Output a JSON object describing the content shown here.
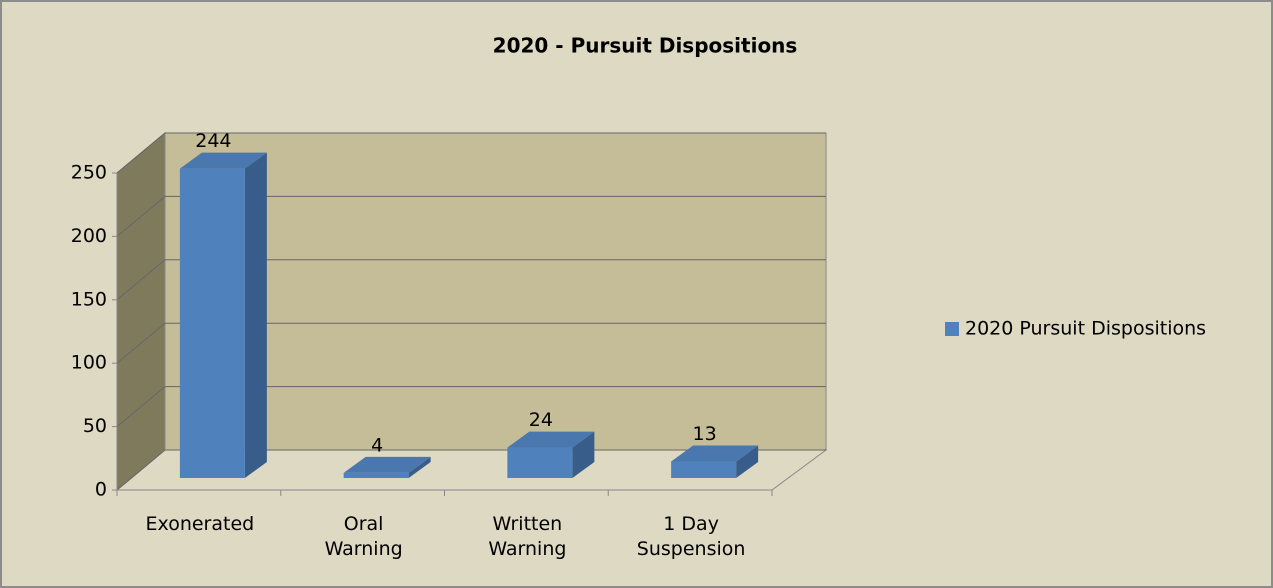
{
  "chart_data": {
    "type": "bar3d",
    "title": "2020 - Pursuit Dispositions",
    "categories": [
      "Exonerated",
      "Oral Warning",
      "Written Warning",
      "1 Day Suspension"
    ],
    "series": [
      {
        "name": "2020 Pursuit Dispositions",
        "color": "#4f81bd",
        "values": [
          244,
          4,
          24,
          13
        ]
      }
    ],
    "ylim": [
      0,
      250
    ],
    "yticks": [
      0,
      50,
      100,
      150,
      200,
      250
    ],
    "grid": true,
    "legend": "right"
  }
}
